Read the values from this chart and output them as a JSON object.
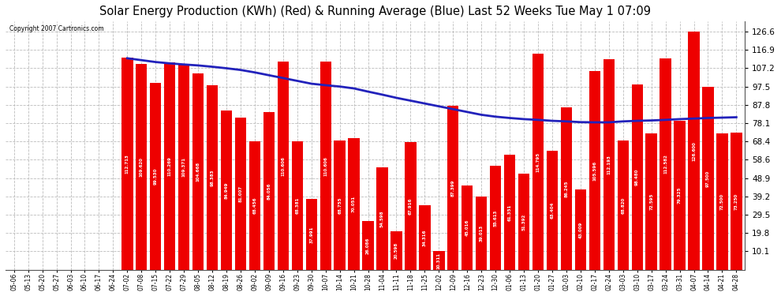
{
  "title": "Solar Energy Production (KWh) (Red) & Running Average (Blue) Last 52 Weeks Tue May 1 07:09",
  "copyright": "Copyright 2007 Cartronics.com",
  "categories": [
    "05-06",
    "05-13",
    "05-20",
    "05-27",
    "06-03",
    "06-10",
    "06-17",
    "06-24",
    "07-02",
    "07-08",
    "07-15",
    "07-22",
    "07-29",
    "08-05",
    "08-12",
    "08-19",
    "08-26",
    "09-02",
    "09-09",
    "09-16",
    "09-23",
    "09-30",
    "10-07",
    "10-14",
    "10-21",
    "10-28",
    "11-04",
    "11-11",
    "11-18",
    "11-25",
    "12-02",
    "12-09",
    "12-16",
    "12-23",
    "12-30",
    "01-06",
    "01-13",
    "01-20",
    "01-27",
    "02-03",
    "02-10",
    "02-17",
    "02-24",
    "03-03",
    "03-10",
    "03-17",
    "03-24",
    "03-31",
    "04-07",
    "04-14",
    "04-21",
    "04-28"
  ],
  "bar_values": [
    0.0,
    0.0,
    0.0,
    0.0,
    0.0,
    0.0,
    0.0,
    0.0,
    112.713,
    109.62,
    99.53,
    110.269,
    109.371,
    104.668,
    98.383,
    84.949,
    81.007,
    68.456,
    84.056,
    110.606,
    68.381,
    37.991,
    110.606,
    68.755,
    70.051,
    26.086,
    54.598,
    20.598,
    67.916,
    34.316,
    10.311,
    87.399,
    45.016,
    39.013,
    55.613,
    61.351,
    51.392,
    114.795,
    63.404,
    86.245,
    43.009,
    105.596,
    112.193,
    68.82,
    98.48,
    72.595,
    112.582,
    79.325,
    126.6,
    97.5,
    72.5,
    73.25
  ],
  "avg_values": [
    null,
    null,
    null,
    null,
    null,
    null,
    null,
    null,
    112.5,
    111.5,
    110.5,
    109.8,
    109.2,
    108.7,
    108.0,
    107.2,
    106.3,
    105.0,
    103.5,
    102.0,
    100.5,
    99.0,
    98.2,
    97.5,
    96.5,
    94.8,
    93.2,
    91.5,
    90.0,
    88.5,
    87.0,
    85.5,
    84.0,
    82.5,
    81.5,
    80.8,
    80.2,
    79.8,
    79.3,
    79.0,
    78.6,
    78.5,
    78.5,
    79.0,
    79.3,
    79.5,
    79.8,
    80.2,
    80.5,
    80.8,
    81.0,
    81.2
  ],
  "yticks": [
    10.1,
    19.8,
    29.5,
    39.2,
    48.9,
    58.6,
    68.4,
    78.1,
    87.8,
    97.5,
    107.2,
    116.9,
    126.6
  ],
  "bar_color": "#ee0000",
  "line_color": "#2222bb",
  "bg_color": "#ffffff",
  "grid_color": "#bbbbbb",
  "title_fontsize": 10.5,
  "bar_text_color": "#ffffff",
  "ylim_min": 0,
  "ylim_max": 132
}
